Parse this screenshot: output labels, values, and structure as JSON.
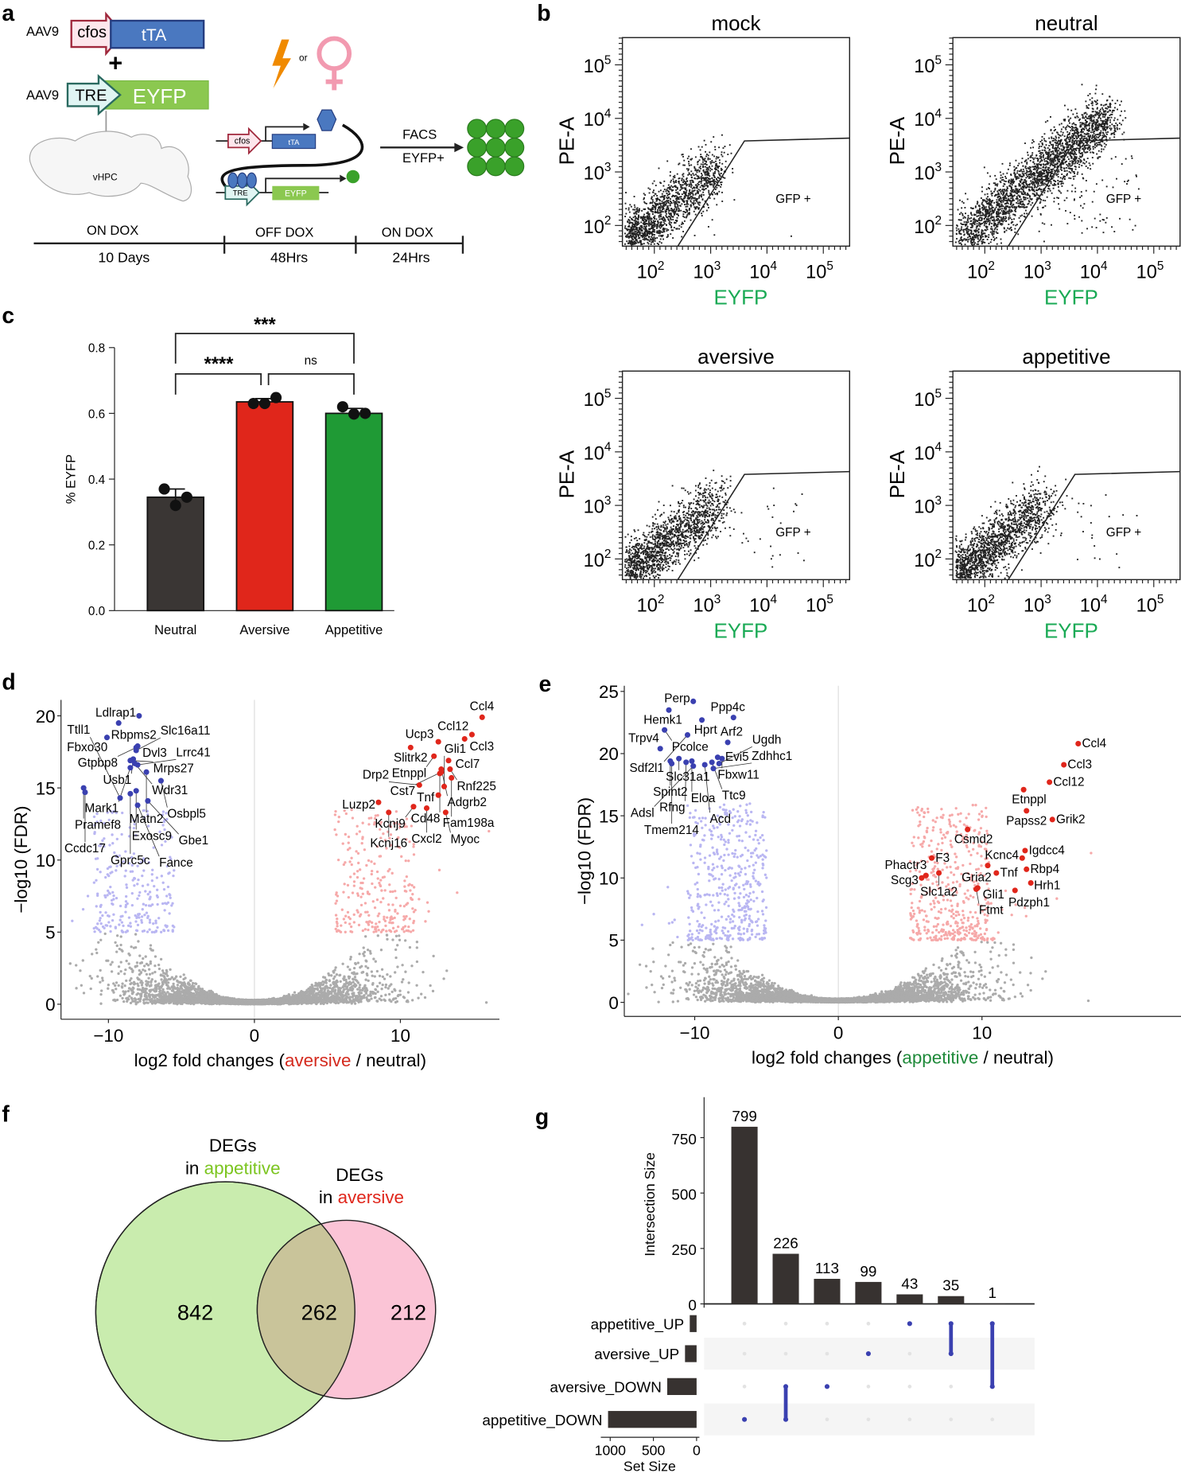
{
  "panel_labels": {
    "a": "a",
    "b": "b",
    "c": "c",
    "d": "d",
    "e": "e",
    "f": "f",
    "g": "g"
  },
  "panel_a": {
    "vector1_label": "AAV9",
    "vector1_promoter": "cfos",
    "vector1_gene": "tTA",
    "plus": "+",
    "vector2_label": "AAV9",
    "vector2_promoter": "TRE",
    "vector2_gene": "EYFP",
    "region": "vHPC",
    "or": "or",
    "mech_promoter1": "cfos",
    "mech_gene1": "tTA",
    "mech_promoter2": "TRE",
    "mech_gene2": "EYFP",
    "facs_top": "FACS",
    "facs_bottom": "EYFP+",
    "timeline": [
      {
        "phase": "ON DOX",
        "duration": "10 Days"
      },
      {
        "phase": "OFF DOX",
        "duration": "48Hrs"
      },
      {
        "phase": "ON DOX",
        "duration": "24Hrs"
      }
    ],
    "colors": {
      "cfos": "#a0283c",
      "tTA": "#4a78c0",
      "TRE": "#2a6a60",
      "EYFP": "#8bc850",
      "shock": "#f08a00",
      "female": "#f29ab0",
      "cells": "#3aa12a"
    }
  },
  "chart_data": [
    {
      "id": "facs-mock",
      "type": "scatter",
      "title": "mock",
      "xlabel": "EYFP",
      "ylabel": "PE-A",
      "x_scale": "log",
      "y_scale": "log",
      "tick_base": "10",
      "xtick_exponents": [
        2,
        3,
        4,
        5
      ],
      "ytick_exponents": [
        2,
        3,
        4,
        5
      ],
      "gate_label": "GFP +",
      "xlabel_color": "#1aaa55"
    },
    {
      "id": "facs-neutral",
      "type": "scatter",
      "title": "neutral",
      "xlabel": "EYFP",
      "ylabel": "PE-A",
      "x_scale": "log",
      "y_scale": "log",
      "tick_base": "10",
      "xtick_exponents": [
        2,
        3,
        4,
        5
      ],
      "ytick_exponents": [
        2,
        3,
        4,
        5
      ],
      "gate_label": "GFP +",
      "xlabel_color": "#1aaa55"
    },
    {
      "id": "facs-aversive",
      "type": "scatter",
      "title": "aversive",
      "xlabel": "EYFP",
      "ylabel": "PE-A",
      "x_scale": "log",
      "y_scale": "log",
      "tick_base": "10",
      "xtick_exponents": [
        2,
        3,
        4,
        5
      ],
      "ytick_exponents": [
        2,
        3,
        4,
        5
      ],
      "gate_label": "GFP +",
      "xlabel_color": "#1aaa55"
    },
    {
      "id": "facs-appetitive",
      "type": "scatter",
      "title": "appetitive",
      "xlabel": "EYFP",
      "ylabel": "PE-A",
      "x_scale": "log",
      "y_scale": "log",
      "tick_base": "10",
      "xtick_exponents": [
        2,
        3,
        4,
        5
      ],
      "ytick_exponents": [
        2,
        3,
        4,
        5
      ],
      "gate_label": "GFP +",
      "xlabel_color": "#1aaa55"
    },
    {
      "id": "bar-eyfp",
      "type": "bar",
      "categories": [
        "Neutral",
        "Aversive",
        "Appetitive"
      ],
      "values": [
        0.345,
        0.635,
        0.6
      ],
      "sem": [
        0.025,
        0.01,
        0.015
      ],
      "points": [
        [
          0.37,
          0.345,
          0.32
        ],
        [
          0.63,
          0.648,
          0.63
        ],
        [
          0.62,
          0.6,
          0.598
        ]
      ],
      "colors": [
        "#3a3634",
        "#e0261b",
        "#1f9a35"
      ],
      "ylabel": "% EYFP",
      "ylim": [
        0,
        0.8
      ],
      "yticks": [
        "0.0",
        "0.2",
        "0.4",
        "0.6",
        "0.8"
      ],
      "significance": [
        {
          "from": "Neutral",
          "to": "Appetitive",
          "label": "***"
        },
        {
          "from": "Neutral",
          "to": "Aversive",
          "label": "****"
        },
        {
          "from": "Aversive",
          "to": "Appetitive",
          "label": "ns"
        }
      ]
    },
    {
      "id": "volcano-aversive",
      "type": "scatter",
      "ylabel": "−log10 (FDR)",
      "xlabel_parts": [
        "log2 fold changes (",
        "aversive",
        " / neutral)"
      ],
      "xlabel_color": "#d42a1e",
      "xticks": [
        -10,
        0,
        10
      ],
      "yticks": [
        0,
        5,
        10,
        15,
        20
      ],
      "xlim": [
        -13,
        17
      ],
      "ylim": [
        -0.5,
        21
      ],
      "down_color": "#3a40b0",
      "up_color": "#e0261b",
      "down_genes": [
        [
          "Ldlrap1",
          -7.9,
          20.0
        ],
        [
          "Rbpms2",
          -9.3,
          19.5
        ],
        [
          "Fbxo30",
          -10.1,
          18.5
        ],
        [
          "Dvl3",
          -8.0,
          17.9
        ],
        [
          "Gtpbp8",
          -8.1,
          17.8
        ],
        [
          "Slc16a11",
          -8.1,
          17.6
        ],
        [
          "Usb1",
          -8.3,
          17.0
        ],
        [
          "Mrps27",
          -8.5,
          16.9
        ],
        [
          "Wdr31",
          -8.2,
          16.7
        ],
        [
          "Lrrc41",
          -8.0,
          16.6
        ],
        [
          "Mark1",
          -8.5,
          16.4
        ],
        [
          "Matn2",
          -7.4,
          16.1
        ],
        [
          "Osbpl5",
          -6.4,
          15.5
        ],
        [
          "Pramef8",
          -11.7,
          15.0
        ],
        [
          "Exosc9",
          -8.1,
          14.8
        ],
        [
          "Ccdc17",
          -11.6,
          14.7
        ],
        [
          "Gprc5c",
          -8.5,
          14.6
        ],
        [
          "Ttll1",
          -9.2,
          14.3
        ],
        [
          "Gbe1",
          -7.3,
          14.1
        ],
        [
          "Fance",
          -8.0,
          13.8
        ]
      ],
      "up_genes": [
        [
          "Ccl4",
          15.6,
          19.9
        ],
        [
          "Ccl3",
          14.9,
          18.7
        ],
        [
          "Ccl12",
          14.4,
          18.4
        ],
        [
          "Ucp3",
          12.6,
          18.2
        ],
        [
          "Slitrk2",
          10.7,
          17.8
        ],
        [
          "Etnppl",
          12.3,
          17.2
        ],
        [
          "Ccl7",
          13.3,
          16.9
        ],
        [
          "Rnf225",
          13.4,
          16.3
        ],
        [
          "Adgrb2",
          12.8,
          16.3
        ],
        [
          "Cst7",
          12.8,
          16.1
        ],
        [
          "Cd48",
          12.7,
          16.0
        ],
        [
          "Fam198a",
          13.5,
          15.7
        ],
        [
          "Drp2",
          11.3,
          15.2
        ],
        [
          "Gli1",
          13.0,
          15.1
        ],
        [
          "Tnf",
          12.6,
          14.5
        ],
        [
          "Luzp2",
          8.5,
          14.0
        ],
        [
          "Kcnj9",
          10.9,
          13.7
        ],
        [
          "Cxcl2",
          11.8,
          13.6
        ],
        [
          "Myoc",
          13.1,
          13.3
        ],
        [
          "Kcnj16",
          9.2,
          13.3
        ]
      ]
    },
    {
      "id": "volcano-appetitive",
      "type": "scatter",
      "ylabel": "−log10 (FDR)",
      "xlabel_parts": [
        "log2 fold changes (",
        "appetitive",
        " / neutral)"
      ],
      "xlabel_color": "#1f8a3a",
      "xticks": [
        -10,
        0,
        10
      ],
      "yticks": [
        0,
        5,
        10,
        15,
        20,
        25
      ],
      "xlim": [
        -15,
        24
      ],
      "ylim": [
        -1,
        25.5
      ],
      "down_color": "#3a40b0",
      "up_color": "#e0261b",
      "down_genes": [
        [
          "Perp",
          -10.1,
          24.2
        ],
        [
          "Hemk1",
          -11.8,
          23.5
        ],
        [
          "Hprt",
          -9.5,
          22.7
        ],
        [
          "Ppp4c",
          -7.3,
          22.9
        ],
        [
          "Pcolce",
          -12.1,
          21.9
        ],
        [
          "Sdf2l1",
          -10.5,
          21.5
        ],
        [
          "Arf2",
          -7.7,
          20.9
        ],
        [
          "Trpv4",
          -12.4,
          20.4
        ],
        [
          "Evi5",
          -8.4,
          19.7
        ],
        [
          "Fbxw11",
          -8.1,
          19.6
        ],
        [
          "Slc31a1",
          -11.1,
          19.6
        ],
        [
          "Spint2",
          -11.7,
          19.4
        ],
        [
          "Eloa",
          -10.2,
          19.4
        ],
        [
          "Rfng",
          -10.6,
          19.3
        ],
        [
          "Tmem214",
          -11.6,
          19.2
        ],
        [
          "Ttc9",
          -8.8,
          19.3
        ],
        [
          "Ugdh",
          -8.3,
          19.2
        ],
        [
          "Acd",
          -9.3,
          19.1
        ],
        [
          "Adsl",
          -10.1,
          19.0
        ],
        [
          "Zdhhc1",
          -8.7,
          18.8
        ]
      ],
      "up_genes": [
        [
          "Ccl4",
          16.7,
          20.8
        ],
        [
          "Ccl3",
          15.7,
          19.1
        ],
        [
          "Ccl12",
          14.7,
          17.7
        ],
        [
          "Etnppl",
          12.9,
          17.1
        ],
        [
          "Papss2",
          13.1,
          15.4
        ],
        [
          "Grik2",
          14.9,
          14.7
        ],
        [
          "Csmd2",
          9.0,
          13.9
        ],
        [
          "Igdcc4",
          13.0,
          12.2
        ],
        [
          "Kcnc4",
          12.8,
          11.6
        ],
        [
          "F3",
          6.5,
          11.6
        ],
        [
          "Gria2",
          10.4,
          11.0
        ],
        [
          "Rbp4",
          13.1,
          10.7
        ],
        [
          "Slc1a2",
          7.0,
          10.4
        ],
        [
          "Tnf",
          11.0,
          10.4
        ],
        [
          "Phactr3",
          6.1,
          10.2
        ],
        [
          "Scg3",
          5.8,
          10.0
        ],
        [
          "Hrh1",
          13.4,
          9.6
        ],
        [
          "Gli1",
          9.7,
          9.2
        ],
        [
          "Ftmt",
          9.6,
          9.1
        ],
        [
          "Pdzph1",
          12.3,
          9.0
        ]
      ]
    },
    {
      "id": "venn",
      "type": "venn",
      "sets": [
        {
          "title": "DEGs",
          "prefix": "in ",
          "name": "appetitive",
          "color": "#7cc520",
          "fill": "#c9ecae"
        },
        {
          "title": "DEGs",
          "prefix": "in ",
          "name": "aversive",
          "color": "#e0261b",
          "fill": "#fbc4d6"
        }
      ],
      "only_appetitive": 842,
      "overlap": 262,
      "only_aversive": 212
    },
    {
      "id": "upset",
      "type": "bar",
      "ylabel": "Intersection Size",
      "yticks": [
        0,
        250,
        500,
        750
      ],
      "values": [
        799,
        226,
        113,
        99,
        43,
        35,
        1
      ],
      "sets": [
        "appetitive_UP",
        "aversive_UP",
        "aversive_DOWN",
        "appetitive_DOWN"
      ],
      "set_sizes": [
        79,
        134,
        340,
        1025
      ],
      "set_size_label": "Set Size",
      "set_size_ticks": [
        1000,
        500,
        0
      ],
      "membership": [
        [
          "appetitive_DOWN"
        ],
        [
          "appetitive_DOWN",
          "aversive_DOWN"
        ],
        [
          "aversive_DOWN"
        ],
        [
          "aversive_UP"
        ],
        [
          "appetitive_UP"
        ],
        [
          "appetitive_UP",
          "aversive_UP"
        ],
        [
          "appetitive_UP",
          "aversive_DOWN"
        ]
      ],
      "dot_color": "#3a40b0"
    }
  ]
}
